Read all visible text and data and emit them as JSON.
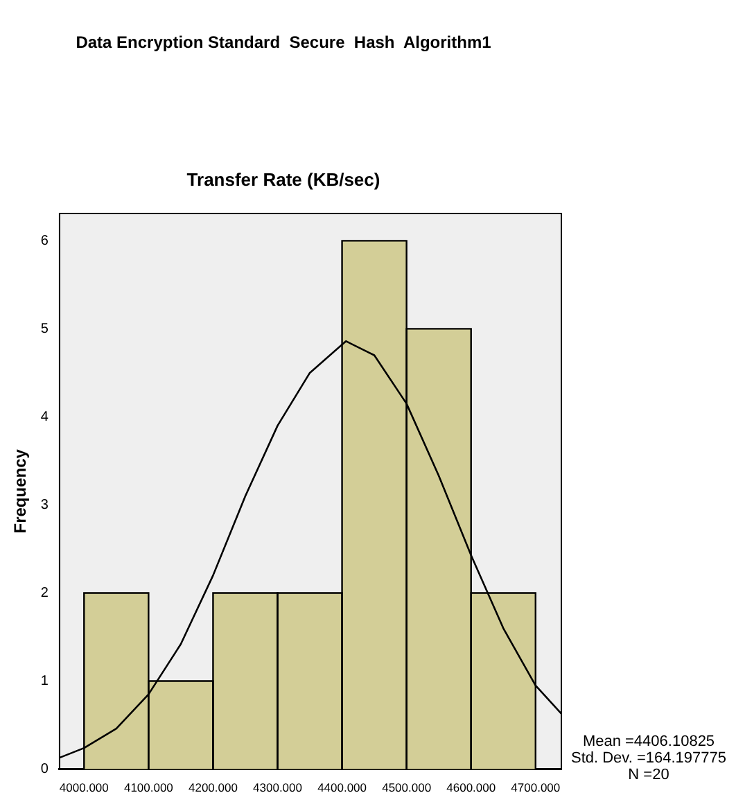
{
  "chart_data": {
    "type": "histogram",
    "title": "Data Encryption Standard  Secure  Hash  Algorithm1",
    "subtitle": "Transfer Rate (KB/sec)",
    "ylabel": "Frequency",
    "bins": [
      4000,
      4100,
      4200,
      4300,
      4400,
      4500,
      4600,
      4700
    ],
    "values": [
      2,
      1,
      2,
      2,
      6,
      5,
      2
    ],
    "color": "#d3ce97",
    "series": [
      {
        "type": "line",
        "color": "#000000",
        "x": [
          3962,
          4000,
          4050,
          4100,
          4150,
          4200,
          4250,
          4300,
          4350,
          4406,
          4450,
          4500,
          4550,
          4600,
          4650,
          4700,
          4740
        ],
        "values": [
          0.13,
          0.24,
          0.46,
          0.85,
          1.42,
          2.2,
          3.1,
          3.9,
          4.5,
          4.86,
          4.7,
          4.15,
          3.33,
          2.43,
          1.6,
          0.95,
          0.63
        ]
      }
    ],
    "xlim": [
      3962,
      4740
    ],
    "xticks": [
      {
        "value": 4000,
        "label": "4000.000"
      },
      {
        "value": 4100,
        "label": "4100.000"
      },
      {
        "value": 4200,
        "label": "4200.000"
      },
      {
        "value": 4300,
        "label": "4300.000"
      },
      {
        "value": 4400,
        "label": "4400.000"
      },
      {
        "value": 4500,
        "label": "4500.000"
      },
      {
        "value": 4600,
        "label": "4600.000"
      },
      {
        "value": 4700,
        "label": "4700.000"
      }
    ],
    "ylim": [
      0,
      6.31
    ],
    "yticks": [
      0,
      1,
      2,
      3,
      4,
      5,
      6
    ],
    "annotations": [
      "Mean =4406.10825",
      "Std. Dev. =164.197775",
      "N =20"
    ]
  }
}
